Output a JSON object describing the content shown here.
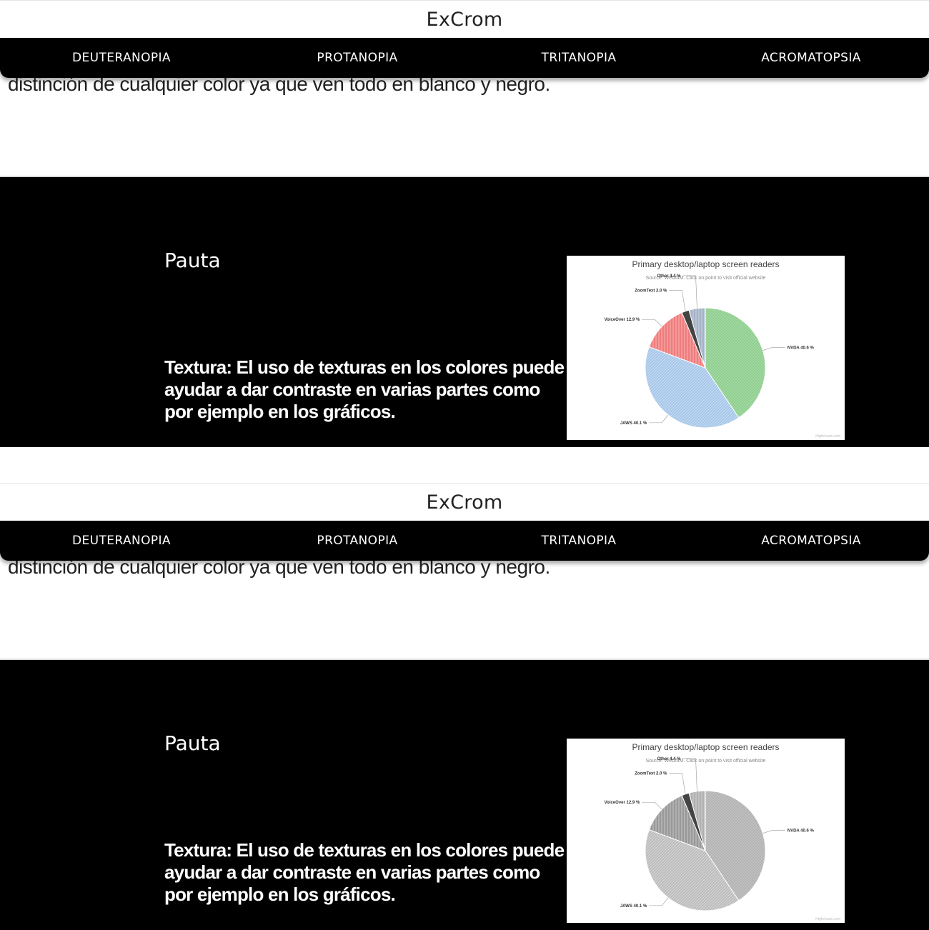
{
  "header": {
    "brand": "ExCrom"
  },
  "nav": {
    "items": [
      {
        "label": "DEUTERANOPIA"
      },
      {
        "label": "PROTANOPIA"
      },
      {
        "label": "TRITANOPIA"
      },
      {
        "label": "ACROMATOPSIA"
      }
    ]
  },
  "intro": {
    "text": "distinción de cualquier color ya que ven todo en blanco y negro."
  },
  "section": {
    "title": "Pauta",
    "text": "Textura: El uso de texturas en los colores puede ayudar a dar contraste en varias partes como por ejemplo en los gráficos."
  },
  "chart_data": [
    {
      "type": "pie",
      "variant": "color",
      "title": "Primary desktop/laptop screen readers",
      "subtitle": "Source: WebAIM. Click on point to visit official website",
      "credit": "Highcharts.com",
      "slices": [
        {
          "name": "NVDA",
          "value": 40.6,
          "label": "NVDA 40.6 %",
          "color": "#8fcf8f",
          "pattern": "dots"
        },
        {
          "name": "JAWS",
          "value": 40.1,
          "label": "JAWS 40.1 %",
          "color": "#a7c7ea",
          "pattern": "weave"
        },
        {
          "name": "VoiceOver",
          "value": 12.9,
          "label": "VoiceOver 12.9 %",
          "color": "#f07c7c",
          "pattern": "vertical-lines"
        },
        {
          "name": "ZoomText",
          "value": 2.0,
          "label": "ZoomText 2.0 %",
          "color": "#444444",
          "pattern": "solid"
        },
        {
          "name": "Other",
          "value": 4.4,
          "label": "Other 4.4 %",
          "color": "#a4b3c7",
          "pattern": "vertical-lines"
        }
      ]
    },
    {
      "type": "pie",
      "variant": "grayscale",
      "title": "Primary desktop/laptop screen readers",
      "subtitle": "Source: WebAIM. Click on point to visit official website",
      "credit": "Highcharts.com",
      "slices": [
        {
          "name": "NVDA",
          "value": 40.6,
          "label": "NVDA 40.6 %",
          "color": "#b3b3b3",
          "pattern": "dots"
        },
        {
          "name": "JAWS",
          "value": 40.1,
          "label": "JAWS 40.1 %",
          "color": "#bdbdbd",
          "pattern": "weave"
        },
        {
          "name": "VoiceOver",
          "value": 12.9,
          "label": "VoiceOver 12.9 %",
          "color": "#999999",
          "pattern": "vertical-lines"
        },
        {
          "name": "ZoomText",
          "value": 2.0,
          "label": "ZoomText 2.0 %",
          "color": "#444444",
          "pattern": "solid"
        },
        {
          "name": "Other",
          "value": 4.4,
          "label": "Other 4.4 %",
          "color": "#b0b0b0",
          "pattern": "vertical-lines"
        }
      ]
    }
  ]
}
